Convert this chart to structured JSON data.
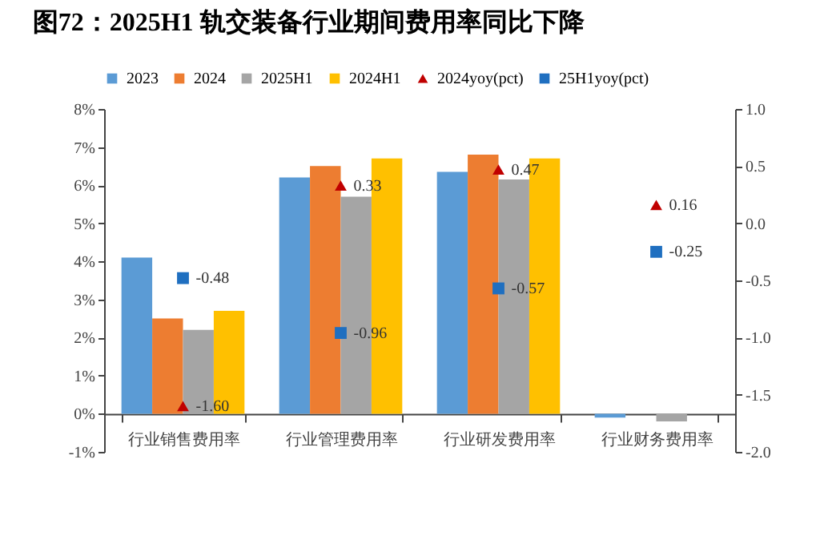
{
  "chart_data": {
    "type": "bar",
    "title": "图72：2025H1 轨交装备行业期间费用率同比下降",
    "categories": [
      "行业销售费用率",
      "行业管理费用率",
      "行业研发费用率",
      "行业财务费用率"
    ],
    "series": [
      {
        "name": "2023",
        "color": "#5b9bd5",
        "values": [
          4.1,
          6.2,
          6.35,
          -0.1
        ]
      },
      {
        "name": "2024",
        "color": "#ed7d31",
        "values": [
          2.5,
          6.5,
          6.8,
          0
        ]
      },
      {
        "name": "2025H1",
        "color": "#a5a5a5",
        "values": [
          2.2,
          5.7,
          6.15,
          -0.2
        ]
      },
      {
        "name": "2024H1",
        "color": "#ffc000",
        "values": [
          2.7,
          6.7,
          6.7,
          0
        ]
      },
      {
        "name": "2024yoy(pct)",
        "type": "scatter",
        "marker": "triangle",
        "axis": "y2",
        "color": "#c00000",
        "values": [
          -1.6,
          0.33,
          0.47,
          0.16
        ],
        "value_labels": [
          "-1.60",
          "0.33",
          "0.47",
          "0.16"
        ]
      },
      {
        "name": "25H1yoy(pct)",
        "type": "scatter",
        "marker": "square",
        "axis": "y2",
        "color": "#1f6fc0",
        "values": [
          -0.48,
          -0.96,
          -0.57,
          -0.25
        ],
        "value_labels": [
          "-0.48",
          "-0.96",
          "-0.57",
          "-0.25"
        ]
      }
    ],
    "ylim": [
      -1,
      8
    ],
    "yticks": [
      {
        "value": -1,
        "label": "-1%"
      },
      {
        "value": 0,
        "label": "0%"
      },
      {
        "value": 1,
        "label": "1%"
      },
      {
        "value": 2,
        "label": "2%"
      },
      {
        "value": 3,
        "label": "3%"
      },
      {
        "value": 4,
        "label": "4%"
      },
      {
        "value": 5,
        "label": "5%"
      },
      {
        "value": 6,
        "label": "6%"
      },
      {
        "value": 7,
        "label": "7%"
      },
      {
        "value": 8,
        "label": "8%"
      }
    ],
    "y2lim": [
      -2,
      1
    ],
    "y2ticks": [
      {
        "value": -2,
        "label": "-2.0"
      },
      {
        "value": -1.5,
        "label": "-1.5"
      },
      {
        "value": -1,
        "label": "-1.0"
      },
      {
        "value": -0.5,
        "label": "-0.5"
      },
      {
        "value": 0,
        "label": "0.0"
      },
      {
        "value": 0.5,
        "label": "0.5"
      },
      {
        "value": 1,
        "label": "1.0"
      }
    ],
    "legend": "top",
    "grid": false
  }
}
